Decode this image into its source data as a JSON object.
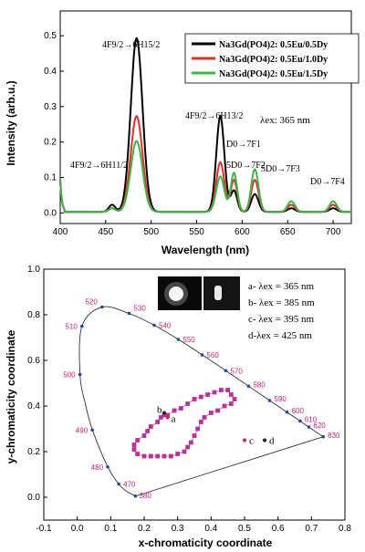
{
  "chart_data": [
    {
      "type": "line",
      "xlabel": "Wavelength (nm)",
      "ylabel": "Intensity (arb.u.)",
      "xlim": [
        400,
        720
      ],
      "ylim": [
        -0.03,
        0.57
      ],
      "xticks": [
        400,
        450,
        500,
        550,
        600,
        650,
        700
      ],
      "yticks": [
        0.0,
        0.1,
        0.2,
        0.3,
        0.4,
        0.5
      ],
      "legend_position": "top-right",
      "excitation_label": "λex: 365 nm",
      "series": [
        {
          "name": "Na3Gd(PO4)2: 0.5Eu/0.5Dy",
          "color": "#000000",
          "peaks": {
            "457": 0.02,
            "484": 0.49,
            "576": 0.27,
            "591": 0.06,
            "614": 0.05,
            "654": 0.01,
            "700": 0.01
          }
        },
        {
          "name": "Na3Gd(PO4)2: 0.5Eu/1.0Dy",
          "color": "#e0302a",
          "peaks": {
            "457": 0.01,
            "484": 0.27,
            "576": 0.14,
            "591": 0.09,
            "614": 0.09,
            "654": 0.02,
            "700": 0.02
          }
        },
        {
          "name": "Na3Gd(PO4)2: 0.5Eu/1.5Dy",
          "color": "#3cb54a",
          "peaks": {
            "457": 0.01,
            "484": 0.2,
            "576": 0.1,
            "591": 0.11,
            "614": 0.12,
            "654": 0.03,
            "700": 0.03
          }
        }
      ],
      "annotations": [
        {
          "text": "4F9/2→6H15/2"
        },
        {
          "text": "4F9/2→6H13/2"
        },
        {
          "text": "4F9/2→6H11/2"
        },
        {
          "text": "D0→7F1"
        },
        {
          "text": "5D0→7F2"
        },
        {
          "text": "5D0→7F3"
        },
        {
          "text": "D0→7F4"
        }
      ]
    },
    {
      "type": "scatter",
      "xlabel": "x-chromaticity coordinate",
      "ylabel": "y-chromaticity coordinate",
      "xlim": [
        -0.1,
        0.8
      ],
      "ylim": [
        -0.1,
        1.0
      ],
      "xticks": [
        -0.1,
        0.0,
        0.1,
        0.2,
        0.3,
        0.4,
        0.5,
        0.6,
        0.7,
        0.8
      ],
      "yticks": [
        0.0,
        0.2,
        0.4,
        0.6,
        0.8,
        1.0
      ],
      "locus": [
        [
          0.1741,
          0.005
        ],
        [
          0.144,
          0.0297
        ],
        [
          0.1241,
          0.0578
        ],
        [
          0.0913,
          0.1327
        ],
        [
          0.0454,
          0.295
        ],
        [
          0.0235,
          0.4127
        ],
        [
          0.0082,
          0.5384
        ],
        [
          0.0139,
          0.7502
        ],
        [
          0.0743,
          0.8338
        ],
        [
          0.1547,
          0.8059
        ],
        [
          0.2296,
          0.7543
        ],
        [
          0.3016,
          0.6923
        ],
        [
          0.3731,
          0.6245
        ],
        [
          0.4441,
          0.5547
        ],
        [
          0.5125,
          0.4866
        ],
        [
          0.5752,
          0.4242
        ],
        [
          0.627,
          0.3725
        ],
        [
          0.6658,
          0.334
        ],
        [
          0.6915,
          0.3083
        ],
        [
          0.7347,
          0.2653
        ]
      ],
      "wavelength_labels": [
        {
          "text": "380",
          "x": 0.174,
          "y": 0.005
        },
        {
          "text": "470",
          "x": 0.124,
          "y": 0.058
        },
        {
          "text": "480",
          "x": 0.091,
          "y": 0.133
        },
        {
          "text": "490",
          "x": 0.045,
          "y": 0.295
        },
        {
          "text": "500",
          "x": 0.008,
          "y": 0.538
        },
        {
          "text": "510",
          "x": 0.014,
          "y": 0.75
        },
        {
          "text": "520",
          "x": 0.074,
          "y": 0.834
        },
        {
          "text": "530",
          "x": 0.155,
          "y": 0.806
        },
        {
          "text": "540",
          "x": 0.23,
          "y": 0.754
        },
        {
          "text": "550",
          "x": 0.302,
          "y": 0.692
        },
        {
          "text": "560",
          "x": 0.373,
          "y": 0.624
        },
        {
          "text": "570",
          "x": 0.444,
          "y": 0.555
        },
        {
          "text": "580",
          "x": 0.512,
          "y": 0.487
        },
        {
          "text": "590",
          "x": 0.575,
          "y": 0.424
        },
        {
          "text": "600",
          "x": 0.627,
          "y": 0.373
        },
        {
          "text": "610",
          "x": 0.666,
          "y": 0.334
        },
        {
          "text": "620",
          "x": 0.692,
          "y": 0.308
        },
        {
          "text": "830",
          "x": 0.735,
          "y": 0.265
        }
      ],
      "trajectory": [
        [
          0.27,
          0.36
        ],
        [
          0.29,
          0.38
        ],
        [
          0.31,
          0.39
        ],
        [
          0.33,
          0.41
        ],
        [
          0.35,
          0.43
        ],
        [
          0.37,
          0.44
        ],
        [
          0.39,
          0.45
        ],
        [
          0.41,
          0.46
        ],
        [
          0.43,
          0.47
        ],
        [
          0.45,
          0.47
        ],
        [
          0.46,
          0.45
        ],
        [
          0.47,
          0.43
        ],
        [
          0.46,
          0.41
        ],
        [
          0.44,
          0.4
        ],
        [
          0.42,
          0.38
        ],
        [
          0.4,
          0.37
        ],
        [
          0.38,
          0.35
        ],
        [
          0.37,
          0.33
        ],
        [
          0.36,
          0.3
        ],
        [
          0.35,
          0.27
        ],
        [
          0.34,
          0.24
        ],
        [
          0.33,
          0.22
        ],
        [
          0.32,
          0.2
        ],
        [
          0.3,
          0.19
        ],
        [
          0.28,
          0.18
        ],
        [
          0.26,
          0.18
        ],
        [
          0.24,
          0.18
        ],
        [
          0.22,
          0.18
        ],
        [
          0.2,
          0.18
        ],
        [
          0.18,
          0.19
        ],
        [
          0.17,
          0.21
        ],
        [
          0.17,
          0.23
        ],
        [
          0.18,
          0.25
        ],
        [
          0.2,
          0.27
        ],
        [
          0.21,
          0.29
        ],
        [
          0.22,
          0.31
        ],
        [
          0.24,
          0.33
        ],
        [
          0.25,
          0.35
        ],
        [
          0.26,
          0.36
        ]
      ],
      "points": [
        {
          "label": "a",
          "x": 0.27,
          "y": 0.35
        },
        {
          "label": "b",
          "x": 0.26,
          "y": 0.37
        },
        {
          "label": "c",
          "x": 0.5,
          "y": 0.25
        },
        {
          "label": "d",
          "x": 0.56,
          "y": 0.25
        }
      ],
      "legend": [
        "a- λex = 365 nm",
        "b- λex = 385 nm",
        "c- λex = 395 nm",
        "d-λex = 425 nm"
      ]
    }
  ]
}
